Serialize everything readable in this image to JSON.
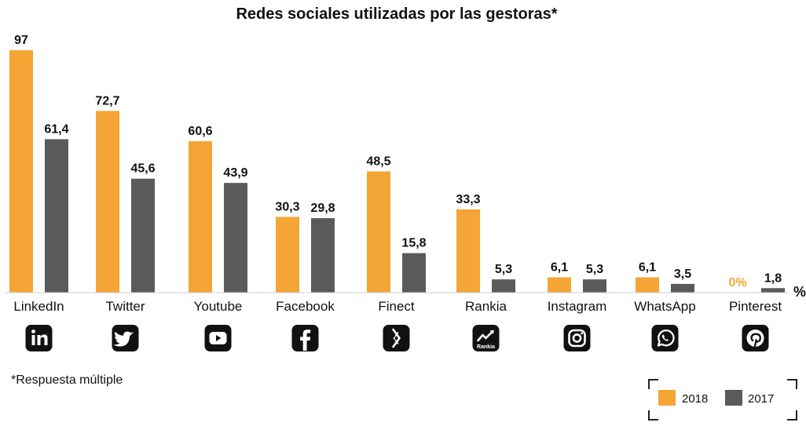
{
  "colors": {
    "s2018": "#f4a535",
    "s2017": "#5a5a5a"
  },
  "chart_data": {
    "type": "bar",
    "title": "Redes sociales utilizadas por las gestoras*",
    "categories": [
      "LinkedIn",
      "Twitter",
      "Youtube",
      "Facebook",
      "Finect",
      "Rankia",
      "Instagram",
      "WhatsApp",
      "Pinterest"
    ],
    "icons": [
      "linkedin-icon",
      "twitter-icon",
      "youtube-icon",
      "facebook-icon",
      "finect-icon",
      "rankia-icon",
      "instagram-icon",
      "whatsapp-icon",
      "pinterest-icon"
    ],
    "series": [
      {
        "name": "2018",
        "values": [
          97,
          72.7,
          60.6,
          30.3,
          48.5,
          33.3,
          6.1,
          6.1,
          0
        ],
        "labels": [
          "97",
          "72,7",
          "60,6",
          "30,3",
          "48,5",
          "33,3",
          "6,1",
          "6,1",
          "0%"
        ]
      },
      {
        "name": "2017",
        "values": [
          61.4,
          45.6,
          43.9,
          29.8,
          15.8,
          5.3,
          5.3,
          3.5,
          1.8
        ],
        "labels": [
          "61,4",
          "45,6",
          "43,9",
          "29,8",
          "15,8",
          "5,3",
          "5,3",
          "3,5",
          "1,8"
        ]
      }
    ],
    "unit": "%",
    "ylim": [
      0,
      100
    ],
    "legend_position": "bottom-right",
    "footnote": "*Respuesta múltiple",
    "icon_text": {
      "rankia": "Rankia"
    }
  }
}
